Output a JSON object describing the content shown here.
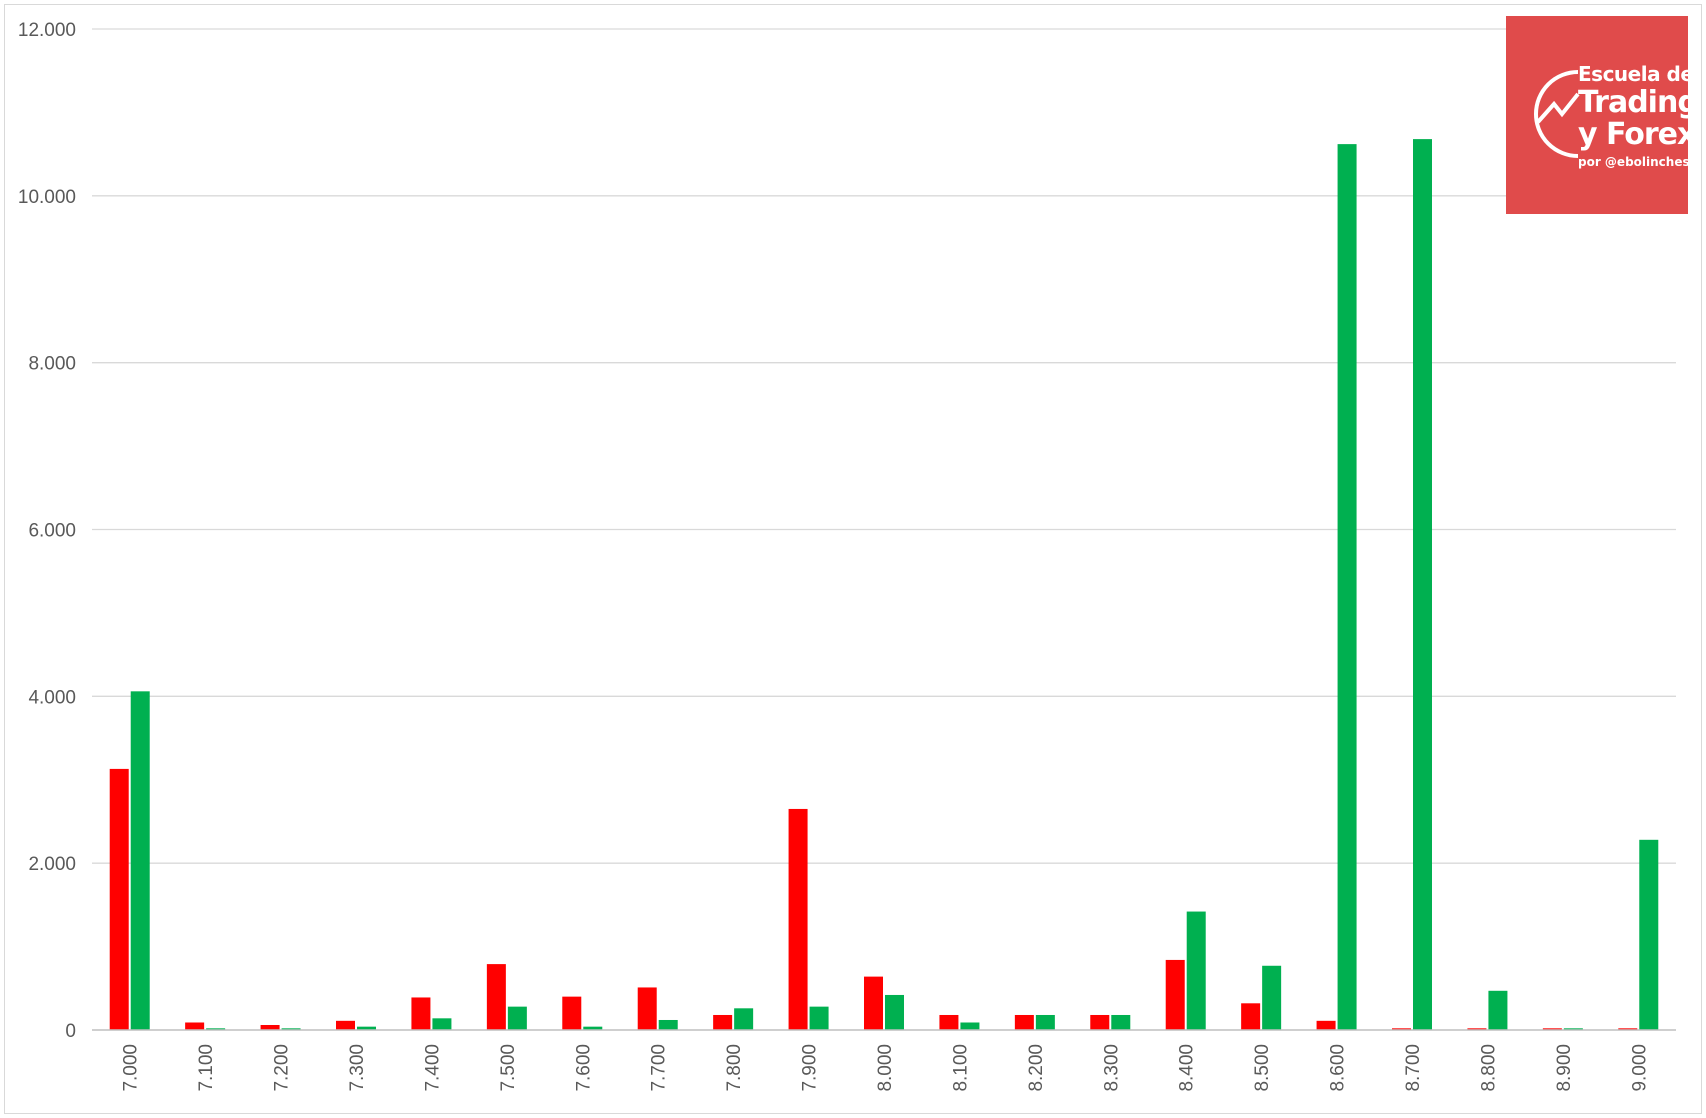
{
  "chart_data": {
    "type": "bar",
    "categories": [
      "7.000",
      "7.100",
      "7.200",
      "7.300",
      "7.400",
      "7.500",
      "7.600",
      "7.700",
      "7.800",
      "7.900",
      "8.000",
      "8.100",
      "8.200",
      "8.300",
      "8.400",
      "8.500",
      "8.600",
      "8.700",
      "8.800",
      "8.900",
      "9.000"
    ],
    "series": [
      {
        "color": "#ff0000",
        "values": [
          3130,
          90,
          60,
          110,
          390,
          790,
          400,
          510,
          180,
          2650,
          640,
          180,
          180,
          180,
          840,
          320,
          110,
          20,
          20,
          20,
          20
        ]
      },
      {
        "color": "#00b050",
        "values": [
          4060,
          20,
          20,
          40,
          140,
          280,
          40,
          120,
          260,
          280,
          420,
          90,
          180,
          180,
          1420,
          770,
          10620,
          10680,
          470,
          20,
          2280
        ]
      }
    ],
    "ylim": [
      0,
      12000
    ],
    "yticks": [
      "0",
      "2.000",
      "4.000",
      "6.000",
      "8.000",
      "10.000",
      "12.000"
    ],
    "ytick_values": [
      0,
      2000,
      4000,
      6000,
      8000,
      10000,
      12000
    ],
    "grid": true,
    "x_tick_rotation": "vertical"
  },
  "logo": {
    "line1": "Escuela de",
    "line2": "Trading",
    "line3": "y Forex",
    "line4": "por @ebolinches",
    "background": "#e04b4b"
  }
}
